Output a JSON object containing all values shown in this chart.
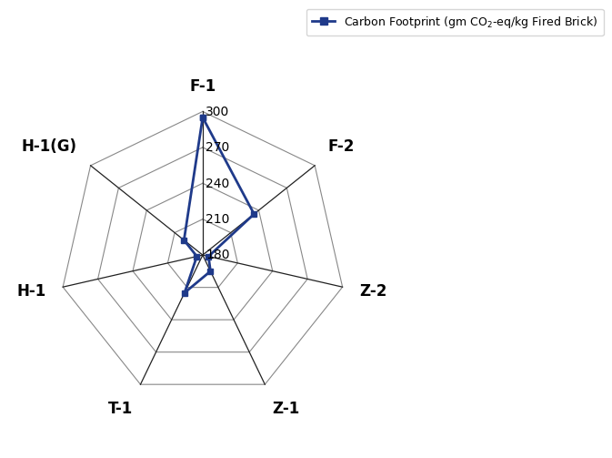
{
  "categories": [
    "F-1",
    "F-2",
    "Z-2",
    "Z-1",
    "T-1",
    "H-1",
    "H-1(G)"
  ],
  "values": [
    295,
    235,
    185,
    195,
    215,
    185,
    200
  ],
  "r_min": 180,
  "r_max": 300,
  "r_ticks": [
    180,
    210,
    240,
    270,
    300
  ],
  "line_color": "#1F3A8A",
  "marker_color": "#1F3A8A",
  "grid_color": "#888888",
  "spine_color": "#222222",
  "legend_label": "Carbon Footprint (gm CO₂-eq/kg Fired Brick)",
  "label_fontsize": 12,
  "tick_fontsize": 10,
  "figsize": [
    6.85,
    4.9
  ],
  "dpi": 100
}
